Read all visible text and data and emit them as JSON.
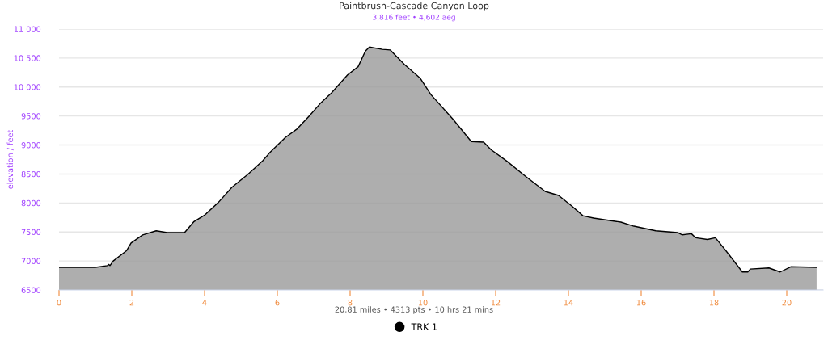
{
  "chart_data": {
    "type": "area",
    "title": "Paintbrush-Cascade Canyon Loop",
    "subtitle": "3,816 feet • 4,602 aeg",
    "ylabel": "elevation / feet",
    "annotations": [
      "20.81 miles • 4313 pts • 10 hrs 21 mins"
    ],
    "xlim": [
      0,
      21
    ],
    "xticks": [
      0,
      2,
      4,
      6,
      8,
      10,
      12,
      14,
      16,
      18,
      20
    ],
    "ylim": [
      6500,
      11000
    ],
    "yticks": [
      6500,
      7000,
      7500,
      8000,
      8500,
      9000,
      9500,
      {
        "value": 10000,
        "label": "10 000"
      },
      {
        "value": 10500,
        "label": "10 500"
      },
      {
        "value": 11000,
        "label": "11 000"
      }
    ],
    "grid": "y",
    "legend": "bottom",
    "series": [
      {
        "name": "TRK 1",
        "color": "#000000",
        "x": [
          0,
          1.0,
          1.33,
          1.37,
          1.4,
          1.49,
          1.86,
          1.98,
          2.3,
          2.67,
          2.97,
          3.45,
          3.71,
          4.0,
          4.38,
          4.75,
          5.2,
          5.6,
          5.78,
          6.22,
          6.53,
          6.89,
          7.2,
          7.49,
          7.93,
          8.22,
          8.42,
          8.53,
          8.89,
          9.1,
          9.49,
          9.93,
          10.22,
          10.82,
          11.33,
          11.67,
          11.87,
          12.31,
          12.82,
          13.36,
          13.73,
          14.09,
          14.4,
          14.69,
          15.44,
          15.8,
          16.4,
          17.0,
          17.13,
          17.38,
          17.5,
          17.82,
          18.04,
          18.4,
          18.78,
          18.93,
          19.0,
          19.51,
          19.82,
          20.11,
          20.82
        ],
        "values": [
          6890,
          6890,
          6920,
          6940,
          6920,
          7000,
          7180,
          7310,
          7450,
          7520,
          7490,
          7490,
          7680,
          7790,
          8010,
          8270,
          8500,
          8730,
          8860,
          9130,
          9270,
          9510,
          9730,
          9900,
          10210,
          10350,
          10620,
          10690,
          10650,
          10640,
          10390,
          10150,
          9870,
          9450,
          9060,
          9050,
          8920,
          8720,
          8460,
          8200,
          8130,
          7950,
          7780,
          7740,
          7670,
          7600,
          7520,
          7490,
          7450,
          7470,
          7400,
          7370,
          7400,
          7120,
          6810,
          6810,
          6860,
          6880,
          6810,
          6900,
          6890
        ]
      }
    ]
  }
}
